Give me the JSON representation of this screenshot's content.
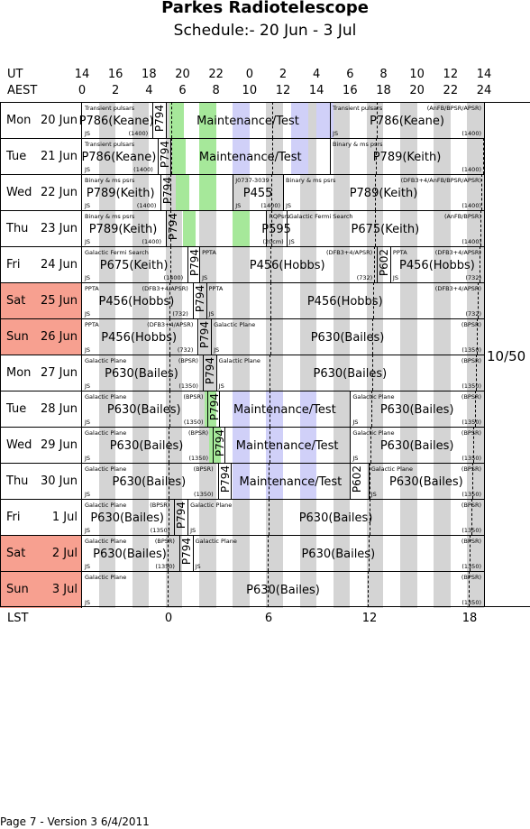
{
  "title": "Parkes Radiotelescope",
  "subtitle": "Schedule:- 20 Jun - 3  Jul",
  "header": {
    "ut_label": "UT",
    "aest_label": "AEST",
    "ut_ticks": [
      "14",
      "16",
      "18",
      "20",
      "22",
      "0",
      "2",
      "4",
      "6",
      "8",
      "10",
      "12",
      "14"
    ],
    "aest_ticks": [
      "0",
      "2",
      "4",
      "6",
      "8",
      "10",
      "12",
      "14",
      "16",
      "18",
      "20",
      "22",
      "24"
    ]
  },
  "side_label": "10/50",
  "lst": {
    "label": "LST",
    "ticks": [
      "0",
      "6",
      "12",
      "18"
    ]
  },
  "footer": "Page 7 - Version 3  6/4/2011",
  "days": [
    {
      "name": "Mon",
      "date": "20 Jun",
      "weekend": false
    },
    {
      "name": "Tue",
      "date": "21 Jun",
      "weekend": false
    },
    {
      "name": "Wed",
      "date": "22 Jun",
      "weekend": false
    },
    {
      "name": "Thu",
      "date": "23 Jun",
      "weekend": false
    },
    {
      "name": "Fri",
      "date": "24 Jun",
      "weekend": false
    },
    {
      "name": "Sat",
      "date": "25 Jun",
      "weekend": true
    },
    {
      "name": "Sun",
      "date": "26 Jun",
      "weekend": true
    },
    {
      "name": "Mon",
      "date": "27 Jun",
      "weekend": false
    },
    {
      "name": "Tue",
      "date": "28 Jun",
      "weekend": false
    },
    {
      "name": "Wed",
      "date": "29 Jun",
      "weekend": false
    },
    {
      "name": "Thu",
      "date": "30 Jun",
      "weekend": false
    },
    {
      "name": "Fri",
      "date": "1 Jul",
      "weekend": false
    },
    {
      "name": "Sat",
      "date": "2 Jul",
      "weekend": true
    },
    {
      "name": "Sun",
      "date": "3 Jul",
      "weekend": true
    }
  ],
  "rows": [
    {
      "blocks": [
        {
          "main": "P786(Keane)",
          "desc": "Transient pulsars",
          "obs": "JS",
          "freq": "(1400)"
        },
        {
          "vert": "P794"
        },
        {
          "main": "Maintenance/Test"
        },
        {
          "main": "P786(Keane)",
          "desc": "Transient pulsars",
          "obs": "JS",
          "freq": "(1400)",
          "backend": "(AnFB/BPSR/APSR)"
        }
      ]
    },
    {
      "blocks": [
        {
          "main": "P786(Keane)",
          "desc": "Transient pulsars",
          "obs": "JS",
          "freq": "(1400)"
        },
        {
          "vert": "P794"
        },
        {
          "main": "Maintenance/Test"
        },
        {
          "main": "P789(Keith)",
          "desc": "Binary & ms psrs",
          "freq": "(1400)"
        }
      ]
    },
    {
      "blocks": [
        {
          "main": "P789(Keith)",
          "desc": "Binary & ms psrs",
          "obs": "JS",
          "freq": "(1400)"
        },
        {
          "vert": "P794"
        },
        {
          "main": "P455",
          "desc": "J0737-3039",
          "obs": "JS",
          "freq": "(1400)"
        },
        {
          "main": "P789(Keith)",
          "desc": "Binary & ms psrs",
          "obs": "JS",
          "freq": "(1400)",
          "backend": "(DFB3+4/AnFB/BPSR/APSR)"
        }
      ]
    },
    {
      "blocks": [
        {
          "main": "P789(Keith)",
          "desc": "Binary & ms psrs",
          "obs": "JS",
          "freq": "(1400)"
        },
        {
          "vert": "P794"
        },
        {
          "main": "P595",
          "desc": "RQPsrs",
          "freq": "(20cm)"
        },
        {
          "main": "P675(Keith)",
          "desc": "Galactic Fermi Search",
          "obs": "JS",
          "freq": "(1400)",
          "backend": "(AnFB/BPSR)"
        }
      ]
    },
    {
      "blocks": [
        {
          "main": "P675(Keith)",
          "desc": "Galactic Fermi Search",
          "obs": "JS",
          "freq": "(1400)"
        },
        {
          "vert": "P794"
        },
        {
          "main": "P456(Hobbs)",
          "desc": "PPTA",
          "obs": "JS",
          "freq": "(732)",
          "backend": "(DFB3+4/APSR)"
        },
        {
          "vert": "P602"
        },
        {
          "main": "P456(Hobbs)",
          "desc": "PPTA",
          "obs": "JS",
          "freq": "(732)",
          "backend": "(DFB3+4/APSR)"
        }
      ]
    },
    {
      "blocks": [
        {
          "main": "P456(Hobbs)",
          "desc": "PPTA",
          "obs": "JS",
          "freq": "(732)",
          "backend": "(DFB3+4/APSR)"
        },
        {
          "vert": "P794"
        },
        {
          "main": "P456(Hobbs)",
          "desc": "PPTA",
          "obs": "JS",
          "freq": "(732)",
          "backend": "(DFB3+4/APSR)"
        }
      ]
    },
    {
      "blocks": [
        {
          "main": "P456(Hobbs)",
          "desc": "PPTA",
          "obs": "JS",
          "freq": "(732)",
          "backend": "(DFB3+4/APSR)"
        },
        {
          "vert": "P794"
        },
        {
          "main": "P630(Bailes)",
          "desc": "Galactic Plane",
          "obs": "JS",
          "freq": "(1350)",
          "backend": "(BPSR)"
        }
      ]
    },
    {
      "blocks": [
        {
          "main": "P630(Bailes)",
          "desc": "Galactic Plane",
          "obs": "JS",
          "freq": "(1350)",
          "backend": "(BPSR)"
        },
        {
          "vert": "P794"
        },
        {
          "main": "P630(Bailes)",
          "desc": "Galactic Plane",
          "obs": "JS",
          "freq": "(1350)",
          "backend": "(BPSR)"
        }
      ]
    },
    {
      "blocks": [
        {
          "main": "P630(Bailes)",
          "desc": "Galactic Plane",
          "obs": "JS",
          "freq": "(1350)",
          "backend": "(BPSR)"
        },
        {
          "vert": "P794"
        },
        {
          "main": "Maintenance/Test"
        },
        {
          "main": "P630(Bailes)",
          "desc": "Galactic Plane",
          "obs": "JS",
          "freq": "(1350)",
          "backend": "(BPSR)"
        }
      ]
    },
    {
      "blocks": [
        {
          "main": "P630(Bailes)",
          "desc": "Galactic Plane",
          "obs": "JS",
          "freq": "(1350)",
          "backend": "(BPSR)"
        },
        {
          "vert": "P794"
        },
        {
          "main": "Maintenance/Test"
        },
        {
          "main": "P630(Bailes)",
          "desc": "Galactic Plane",
          "obs": "JS",
          "freq": "(1350)",
          "backend": "(BPSR)"
        }
      ]
    },
    {
      "blocks": [
        {
          "main": "P630(Bailes)",
          "desc": "Galactic Plane",
          "obs": "JS",
          "freq": "(1350)",
          "backend": "(BPSR)"
        },
        {
          "vert": "P794"
        },
        {
          "main": "Maintenance/Test"
        },
        {
          "vert": "P602"
        },
        {
          "main": "P630(Bailes)",
          "desc": "Galactic Plane",
          "obs": "JS",
          "freq": "(1350)",
          "backend": "(BPSR)"
        }
      ]
    },
    {
      "blocks": [
        {
          "main": "P630(Bailes)",
          "desc": "Galactic Plane",
          "obs": "JS",
          "freq": "(1350)",
          "backend": "(BPSR)"
        },
        {
          "vert": "P794"
        },
        {
          "main": "P630(Bailes)",
          "desc": "Galactic Plane",
          "obs": "JS",
          "freq": "(1350)",
          "backend": "(BPSR)"
        }
      ]
    },
    {
      "blocks": [
        {
          "main": "P630(Bailes)",
          "desc": "Galactic Plane",
          "obs": "JS",
          "freq": "(1350)",
          "backend": "(BPSR)"
        },
        {
          "vert": "P794"
        },
        {
          "main": "P630(Bailes)",
          "desc": "Galactic Plane",
          "obs": "JS",
          "freq": "(1350)",
          "backend": "(BPSR)"
        }
      ]
    },
    {
      "blocks": [
        {
          "main": "P630(Bailes)",
          "desc": "Galactic Plane",
          "obs": "JS",
          "freq": "(1350)",
          "backend": "(BPSR)"
        }
      ]
    }
  ],
  "colors": {
    "weekend": "#f7a090",
    "gray_stripe": "#d4d4d4",
    "maintenance_stripe": "#d0d0f8",
    "p794_stripe": "#a6e89a"
  }
}
